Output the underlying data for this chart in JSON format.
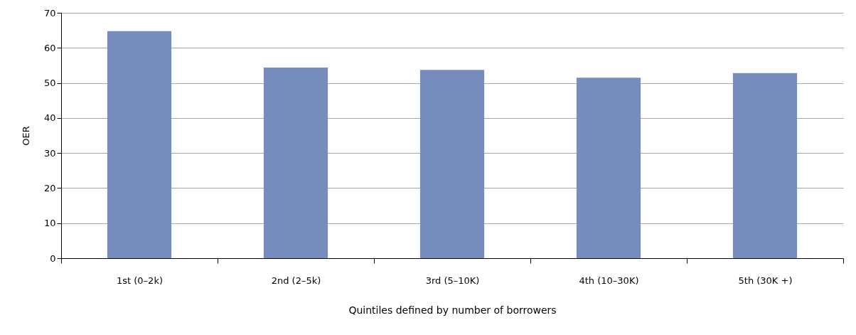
{
  "chart_data": {
    "type": "bar",
    "xlabel": "Quintiles defined by number of borrowers",
    "ylabel": "OER",
    "categories": [
      "1st (0–2k)",
      "2nd (2–5k)",
      "3rd (5–10K)",
      "4th (10–30K)",
      "5th (30K +)"
    ],
    "values": [
      64.8,
      54.4,
      53.7,
      51.5,
      52.8
    ],
    "color": "#758cbc",
    "ylim": [
      0,
      70
    ],
    "yticks": [
      0,
      10,
      20,
      30,
      40,
      50,
      60,
      70
    ],
    "grid": "y"
  }
}
